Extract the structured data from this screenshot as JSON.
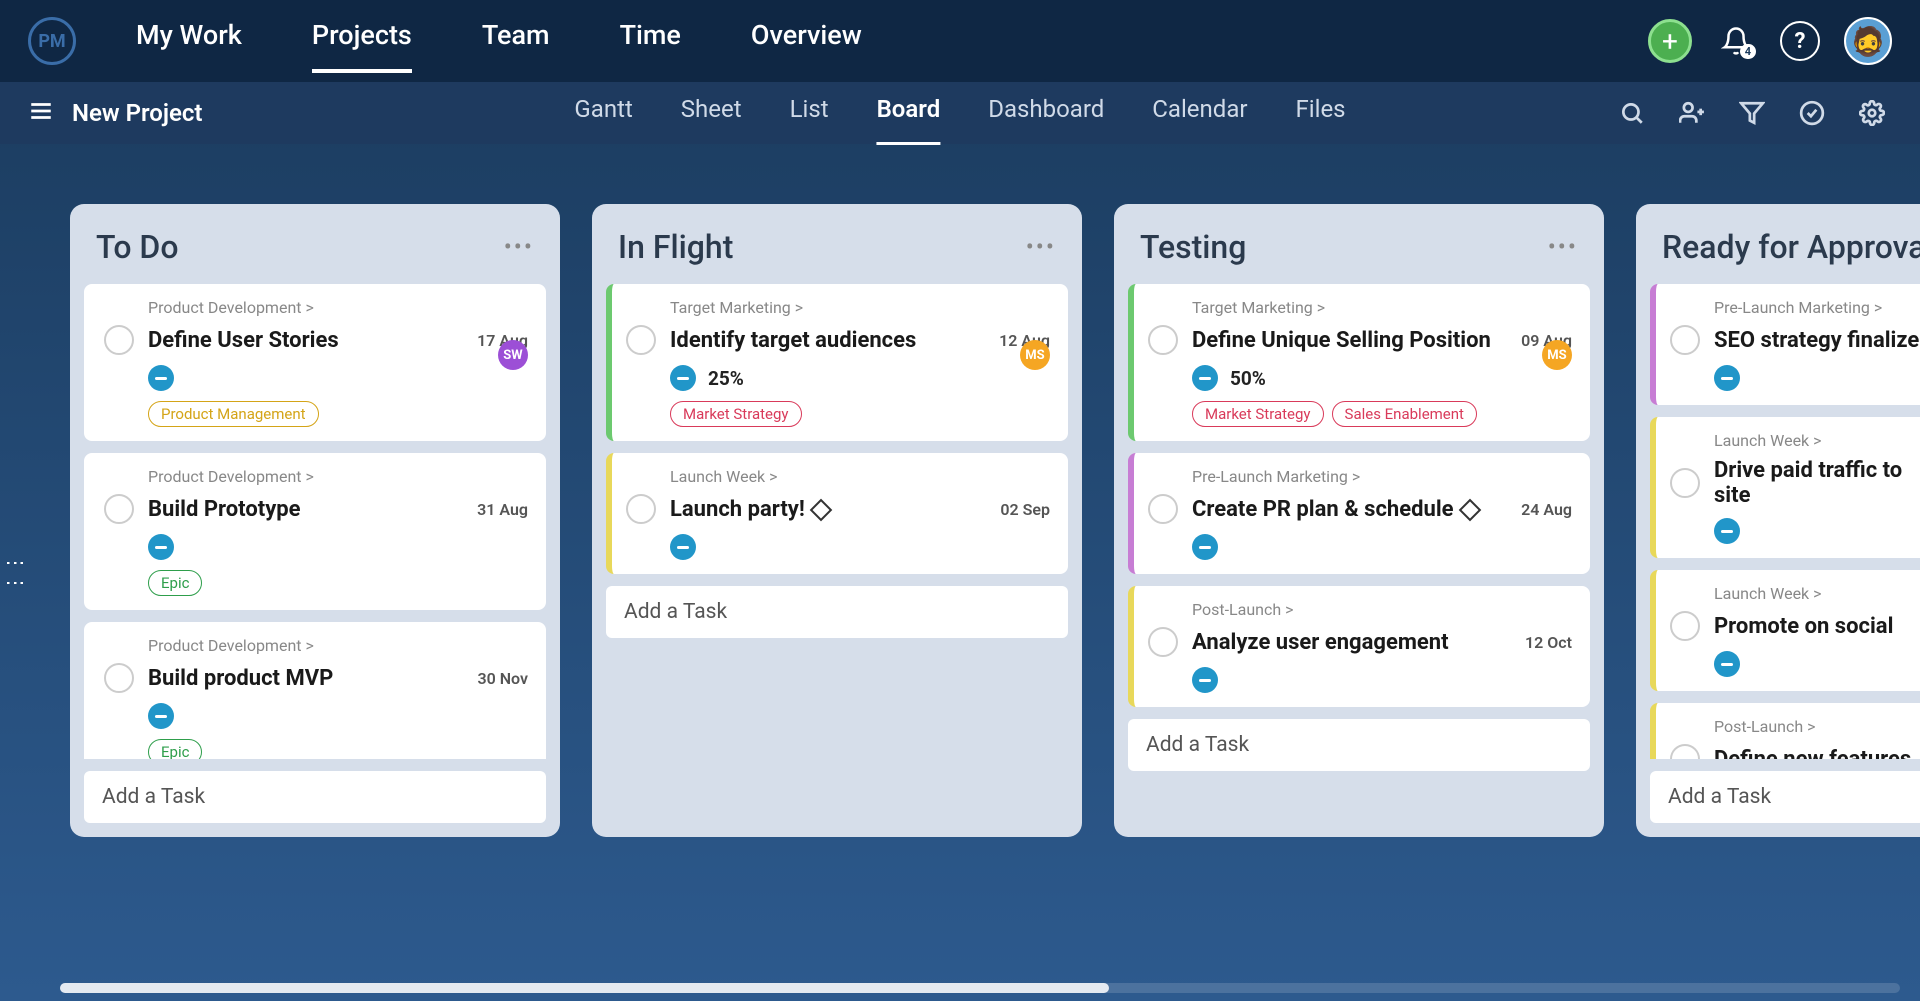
{
  "logo_text": "PM",
  "topnav": {
    "items": [
      {
        "label": "My Work",
        "active": false
      },
      {
        "label": "Projects",
        "active": true
      },
      {
        "label": "Team",
        "active": false
      },
      {
        "label": "Time",
        "active": false
      },
      {
        "label": "Overview",
        "active": false
      }
    ]
  },
  "notif_count": "4",
  "project_name": "New Project",
  "views": [
    {
      "label": "Gantt",
      "active": false
    },
    {
      "label": "Sheet",
      "active": false
    },
    {
      "label": "List",
      "active": false
    },
    {
      "label": "Board",
      "active": true
    },
    {
      "label": "Dashboard",
      "active": false
    },
    {
      "label": "Calendar",
      "active": false
    },
    {
      "label": "Files",
      "active": false
    }
  ],
  "add_task_label": "Add a Task",
  "columns": [
    {
      "title": "To Do",
      "border_color": "transparent",
      "cards": [
        {
          "category": "Product Development  >",
          "title": "Define User Stories",
          "date": "17 Aug",
          "progress": null,
          "assignee": {
            "text": "SW",
            "bg": "#9c4fd6",
            "fg": "#fff"
          },
          "tags": [
            {
              "label": "Product Management",
              "color": "#d4a417"
            }
          ],
          "has_diamond": false,
          "border_color": "transparent"
        },
        {
          "category": "Product Development  >",
          "title": "Build Prototype",
          "date": "31 Aug",
          "progress": null,
          "assignee": null,
          "tags": [
            {
              "label": "Epic",
              "color": "#2e9e4b"
            }
          ],
          "has_diamond": false,
          "border_color": "transparent"
        },
        {
          "category": "Product Development  >",
          "title": "Build product MVP",
          "date": "30 Nov",
          "progress": null,
          "assignee": null,
          "tags": [
            {
              "label": "Epic",
              "color": "#2e9e4b"
            }
          ],
          "has_diamond": false,
          "border_color": "transparent"
        }
      ],
      "partial_card_category": "Product Development  >"
    },
    {
      "title": "In Flight",
      "border_color": "transparent",
      "cards": [
        {
          "category": "Target Marketing  >",
          "title": "Identify target audiences",
          "date": "12 Aug",
          "progress": "25%",
          "assignee": {
            "text": "MS",
            "bg": "#f5a623",
            "fg": "#fff"
          },
          "tags": [
            {
              "label": "Market Strategy",
              "color": "#d93a5a"
            }
          ],
          "has_diamond": false,
          "border_color": "#6cc96f"
        },
        {
          "category": "Launch Week  >",
          "title": "Launch party!",
          "date": "02 Sep",
          "progress": null,
          "assignee": null,
          "tags": [],
          "has_diamond": true,
          "border_color": "#e8d85a"
        }
      ],
      "partial_card_category": null
    },
    {
      "title": "Testing",
      "border_color": "transparent",
      "cards": [
        {
          "category": "Target Marketing  >",
          "title": "Define Unique Selling Position",
          "date": "09 Aug",
          "progress": "50%",
          "assignee": {
            "text": "MS",
            "bg": "#f5a623",
            "fg": "#fff"
          },
          "tags": [
            {
              "label": "Market Strategy",
              "color": "#d93a5a"
            },
            {
              "label": "Sales Enablement",
              "color": "#d93a5a"
            }
          ],
          "has_diamond": false,
          "border_color": "#6cc96f"
        },
        {
          "category": "Pre-Launch Marketing  >",
          "title": "Create PR plan & schedule",
          "date": "24 Aug",
          "progress": null,
          "assignee": null,
          "tags": [],
          "has_diamond": true,
          "border_color": "#c77dd4"
        },
        {
          "category": "Post-Launch  >",
          "title": "Analyze user engagement",
          "date": "12 Oct",
          "progress": null,
          "assignee": null,
          "tags": [],
          "has_diamond": false,
          "border_color": "#e8d85a"
        }
      ],
      "partial_card_category": null
    },
    {
      "title": "Ready for Approval",
      "border_color": "transparent",
      "narrow": true,
      "cards": [
        {
          "category": "Pre-Launch Marketing  >",
          "title": "SEO strategy finalized",
          "date": null,
          "progress": null,
          "assignee": null,
          "tags": [],
          "has_diamond": false,
          "border_color": "#c77dd4"
        },
        {
          "category": "Launch Week  >",
          "title": "Drive paid traffic to site",
          "date": null,
          "progress": null,
          "assignee": null,
          "tags": [],
          "has_diamond": false,
          "border_color": "#e8d85a"
        },
        {
          "category": "Launch Week  >",
          "title": "Promote on social",
          "date": null,
          "progress": null,
          "assignee": null,
          "tags": [],
          "has_diamond": false,
          "border_color": "#e8d85a"
        },
        {
          "category": "Post-Launch  >",
          "title": "Define new features",
          "date": null,
          "progress": null,
          "assignee": null,
          "tags": [],
          "has_diamond": false,
          "border_color": "#e8d85a"
        }
      ],
      "partial_card_category": null
    }
  ]
}
